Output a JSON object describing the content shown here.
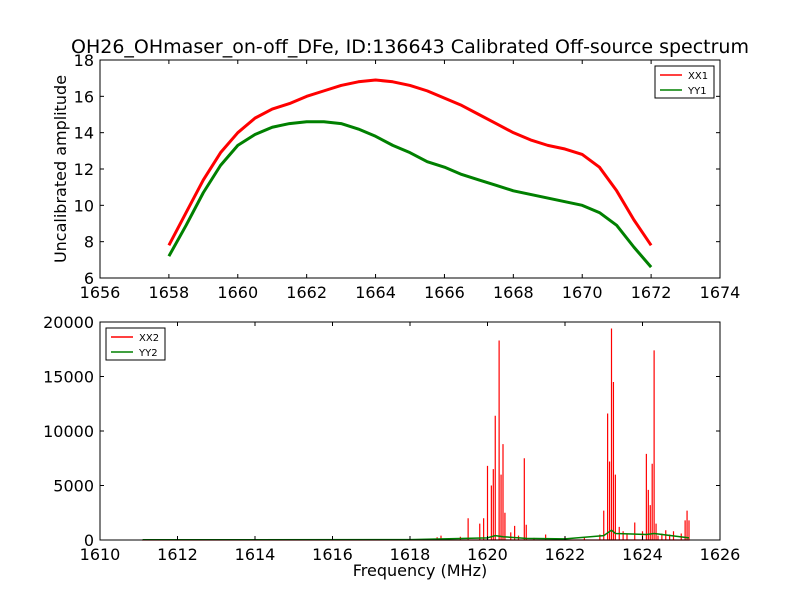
{
  "title": "OH26_OHmaser_on-off_DFe, ID:136643 Calibrated Off-source spectrum",
  "chart_data": [
    {
      "type": "line",
      "xlabel": "",
      "ylabel": "Uncalibrated amplitude",
      "xlim": [
        1656,
        1674
      ],
      "ylim": [
        6,
        18
      ],
      "xticks": [
        1656,
        1658,
        1660,
        1662,
        1664,
        1666,
        1668,
        1670,
        1672,
        1674
      ],
      "yticks": [
        6,
        8,
        10,
        12,
        14,
        16,
        18
      ],
      "grid": false,
      "legend": "top-right",
      "series": [
        {
          "name": "XX1",
          "color": "#ff0000",
          "x": [
            1658,
            1658.5,
            1659,
            1659.5,
            1660,
            1660.5,
            1661,
            1661.5,
            1662,
            1662.5,
            1663,
            1663.5,
            1664,
            1664.5,
            1665,
            1665.5,
            1666,
            1666.5,
            1667,
            1667.5,
            1668,
            1668.5,
            1669,
            1669.5,
            1670,
            1670.5,
            1671,
            1671.5,
            1672
          ],
          "y": [
            7.8,
            9.6,
            11.4,
            12.9,
            14.0,
            14.8,
            15.3,
            15.6,
            16.0,
            16.3,
            16.6,
            16.8,
            16.9,
            16.8,
            16.6,
            16.3,
            15.9,
            15.5,
            15.0,
            14.5,
            14.0,
            13.6,
            13.3,
            13.1,
            12.8,
            12.1,
            10.8,
            9.2,
            7.8
          ]
        },
        {
          "name": "YY1",
          "color": "#008000",
          "x": [
            1658,
            1658.5,
            1659,
            1659.5,
            1660,
            1660.5,
            1661,
            1661.5,
            1662,
            1662.5,
            1663,
            1663.5,
            1664,
            1664.5,
            1665,
            1665.5,
            1666,
            1666.5,
            1667,
            1667.5,
            1668,
            1668.5,
            1669,
            1669.5,
            1670,
            1670.5,
            1671,
            1671.5,
            1672
          ],
          "y": [
            7.2,
            8.9,
            10.7,
            12.2,
            13.3,
            13.9,
            14.3,
            14.5,
            14.6,
            14.6,
            14.5,
            14.2,
            13.8,
            13.3,
            12.9,
            12.4,
            12.1,
            11.7,
            11.4,
            11.1,
            10.8,
            10.6,
            10.4,
            10.2,
            10.0,
            9.6,
            8.9,
            7.7,
            6.6
          ]
        }
      ]
    },
    {
      "type": "line",
      "xlabel": "Frequency (MHz)",
      "ylabel": "",
      "xlim": [
        1610,
        1626
      ],
      "ylim": [
        0,
        20000
      ],
      "xticks": [
        1610,
        1612,
        1614,
        1616,
        1618,
        1620,
        1622,
        1624,
        1626
      ],
      "yticks": [
        0,
        5000,
        10000,
        15000,
        20000
      ],
      "grid": false,
      "legend": "top-left",
      "series": [
        {
          "name": "XX2",
          "color": "#ff0000",
          "x": [
            1611.1,
            1618.0,
            1618.7,
            1618.8,
            1619.3,
            1619.5,
            1619.8,
            1619.9,
            1620.0,
            1620.1,
            1620.15,
            1620.2,
            1620.3,
            1620.35,
            1620.4,
            1620.45,
            1620.6,
            1620.7,
            1620.8,
            1620.95,
            1621.0,
            1621.2,
            1621.5,
            1622.0,
            1622.5,
            1622.9,
            1623.0,
            1623.1,
            1623.15,
            1623.2,
            1623.25,
            1623.3,
            1623.4,
            1623.5,
            1623.6,
            1623.8,
            1624.0,
            1624.1,
            1624.15,
            1624.2,
            1624.25,
            1624.3,
            1624.35,
            1624.4,
            1624.5,
            1624.6,
            1624.7,
            1624.8,
            1625.0,
            1625.1,
            1625.15,
            1625.2
          ],
          "y": [
            20,
            30,
            250,
            400,
            300,
            2000,
            1500,
            2000,
            6800,
            5000,
            6500,
            11400,
            18300,
            6000,
            8800,
            2500,
            700,
            1300,
            400,
            7500,
            1400,
            200,
            500,
            300,
            200,
            500,
            2700,
            11600,
            7200,
            19400,
            14500,
            6000,
            1200,
            800,
            500,
            1600,
            800,
            7900,
            4600,
            3200,
            7000,
            17400,
            1500,
            400,
            600,
            900,
            500,
            800,
            600,
            1800,
            2700,
            1800
          ]
        },
        {
          "name": "YY2",
          "color": "#008000",
          "x": [
            1611.1,
            1618.0,
            1620.0,
            1620.2,
            1620.4,
            1621.0,
            1622.0,
            1623.0,
            1623.2,
            1623.3,
            1624.1,
            1624.3,
            1625.2
          ],
          "y": [
            20,
            30,
            200,
            400,
            300,
            150,
            100,
            400,
            900,
            600,
            500,
            600,
            200
          ]
        }
      ]
    }
  ]
}
